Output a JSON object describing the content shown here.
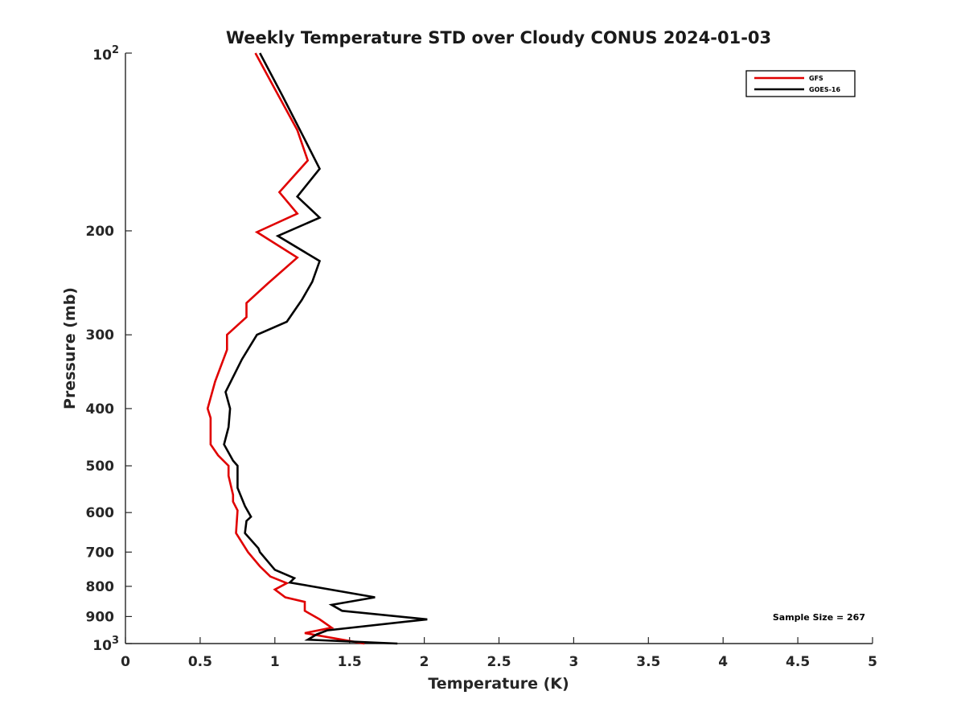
{
  "chart_data": {
    "type": "line",
    "title": "Weekly Temperature STD over Cloudy CONUS 2024-01-03",
    "xlabel": "Temperature (K)",
    "ylabel": "Pressure (mb)",
    "xlim": [
      0,
      5
    ],
    "ylim": [
      100,
      1000
    ],
    "y_scale": "log",
    "y_reversed": true,
    "xticks": [
      "0",
      "0.5",
      "1",
      "1.5",
      "2",
      "2.5",
      "3",
      "3.5",
      "4",
      "4.5",
      "5"
    ],
    "yticks": [
      {
        "value": 100,
        "label": "10",
        "sup": "2"
      },
      {
        "value": 200,
        "label": "200",
        "sup": ""
      },
      {
        "value": 300,
        "label": "300",
        "sup": ""
      },
      {
        "value": 400,
        "label": "400",
        "sup": ""
      },
      {
        "value": 500,
        "label": "500",
        "sup": ""
      },
      {
        "value": 600,
        "label": "600",
        "sup": ""
      },
      {
        "value": 700,
        "label": "700",
        "sup": ""
      },
      {
        "value": 800,
        "label": "800",
        "sup": ""
      },
      {
        "value": 900,
        "label": "900",
        "sup": ""
      },
      {
        "value": 1000,
        "label": "10",
        "sup": "3"
      }
    ],
    "grid": false,
    "legend_position": "top-right",
    "annotation": "Sample Size = 267",
    "series": [
      {
        "name": "GFS",
        "color": "#e00000",
        "points": [
          [
            0.87,
            100
          ],
          [
            1.0,
            115
          ],
          [
            1.15,
            135
          ],
          [
            1.22,
            152
          ],
          [
            1.03,
            172
          ],
          [
            1.15,
            187
          ],
          [
            0.88,
            201
          ],
          [
            1.15,
            222
          ],
          [
            0.95,
            246
          ],
          [
            0.81,
            265
          ],
          [
            0.81,
            280
          ],
          [
            0.68,
            300
          ],
          [
            0.68,
            318
          ],
          [
            0.6,
            360
          ],
          [
            0.55,
            400
          ],
          [
            0.57,
            415
          ],
          [
            0.57,
            460
          ],
          [
            0.62,
            480
          ],
          [
            0.69,
            500
          ],
          [
            0.69,
            520
          ],
          [
            0.72,
            560
          ],
          [
            0.72,
            575
          ],
          [
            0.75,
            595
          ],
          [
            0.74,
            650
          ],
          [
            0.82,
            700
          ],
          [
            0.9,
            740
          ],
          [
            0.97,
            770
          ],
          [
            1.08,
            790
          ],
          [
            1.0,
            810
          ],
          [
            1.07,
            835
          ],
          [
            1.2,
            850
          ],
          [
            1.2,
            880
          ],
          [
            1.3,
            910
          ],
          [
            1.38,
            940
          ],
          [
            1.2,
            960
          ],
          [
            1.45,
            985
          ],
          [
            1.6,
            1000
          ]
        ]
      },
      {
        "name": "GOES-16",
        "color": "#000000",
        "points": [
          [
            0.9,
            100
          ],
          [
            1.05,
            118
          ],
          [
            1.2,
            140
          ],
          [
            1.3,
            157
          ],
          [
            1.15,
            175
          ],
          [
            1.3,
            190
          ],
          [
            1.02,
            204
          ],
          [
            1.3,
            225
          ],
          [
            1.25,
            244
          ],
          [
            1.18,
            262
          ],
          [
            1.08,
            285
          ],
          [
            0.88,
            300
          ],
          [
            0.78,
            330
          ],
          [
            0.67,
            375
          ],
          [
            0.7,
            400
          ],
          [
            0.69,
            430
          ],
          [
            0.66,
            460
          ],
          [
            0.72,
            490
          ],
          [
            0.75,
            500
          ],
          [
            0.75,
            545
          ],
          [
            0.8,
            585
          ],
          [
            0.84,
            610
          ],
          [
            0.81,
            620
          ],
          [
            0.8,
            650
          ],
          [
            0.89,
            690
          ],
          [
            0.9,
            700
          ],
          [
            1.0,
            750
          ],
          [
            1.13,
            775
          ],
          [
            1.1,
            788
          ],
          [
            1.67,
            835
          ],
          [
            1.38,
            860
          ],
          [
            1.45,
            880
          ],
          [
            2.02,
            910
          ],
          [
            1.35,
            950
          ],
          [
            1.28,
            965
          ],
          [
            1.22,
            985
          ],
          [
            1.82,
            1000
          ]
        ]
      }
    ]
  }
}
